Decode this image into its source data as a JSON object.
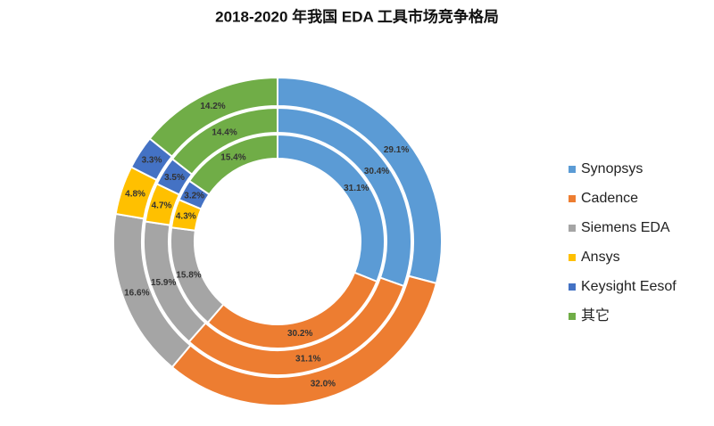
{
  "chart_data": {
    "type": "nested-donut",
    "title": "2018-2020 年我国 EDA 工具市场竞争格局",
    "categories": [
      "Synopsys",
      "Cadence",
      "Siemens EDA",
      "Ansys",
      "Keysight Eesof",
      "其它"
    ],
    "colors": [
      "#5b9bd5",
      "#ed7d31",
      "#a5a5a5",
      "#ffc000",
      "#4472c4",
      "#70ad47"
    ],
    "rings": [
      {
        "values": [
          29.1,
          32.0,
          16.6,
          4.8,
          3.3,
          14.2
        ],
        "value_labels": [
          "29.1%",
          "32.0%",
          "16.6%",
          "4.8%",
          "3.3%",
          "14.2%"
        ]
      },
      {
        "values": [
          30.4,
          31.1,
          15.9,
          4.7,
          3.5,
          14.4
        ],
        "value_labels": [
          "30.4%",
          "31.1%",
          "15.9%",
          "4.7%",
          "3.5%",
          "14.4%"
        ]
      },
      {
        "values": [
          31.1,
          30.2,
          15.8,
          4.3,
          3.2,
          15.4
        ],
        "value_labels": [
          "31.1%",
          "30.2%",
          "15.8%",
          "4.3%",
          "3.2%",
          "15.4%"
        ]
      }
    ],
    "legend": "right"
  }
}
